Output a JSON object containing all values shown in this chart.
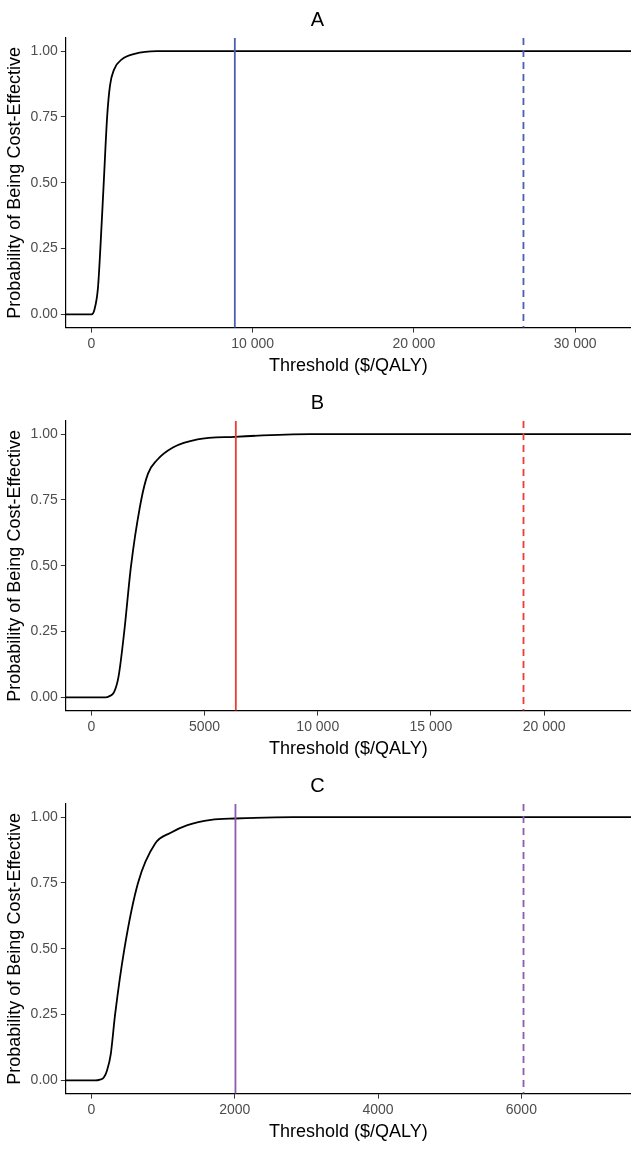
{
  "chart_data": [
    {
      "type": "line",
      "title": "A",
      "xlabel": "Threshold ($/QALY)",
      "ylabel": "Probability of Being Cost-Effective",
      "xlim": [
        -1590,
        33460
      ],
      "ylim": [
        -0.05,
        1.05
      ],
      "xticks": [
        0,
        {
          "value": 10000,
          "label": "10 000"
        },
        {
          "value": 20000,
          "label": "20 000"
        },
        {
          "value": 30000,
          "label": "30 000"
        }
      ],
      "yticks": [
        {
          "value": 0,
          "label": "0.00"
        },
        {
          "value": 0.25,
          "label": "0.25"
        },
        {
          "value": 0.5,
          "label": "0.50"
        },
        {
          "value": 0.75,
          "label": "0.75"
        },
        {
          "value": 1,
          "label": "1.00"
        }
      ],
      "grid": false,
      "legend": false,
      "marker": "none",
      "line_style": "solid",
      "series": [
        {
          "color": "#000000",
          "x": [
            -1590,
            0,
            190,
            400,
            550,
            760,
            970,
            1150,
            1400,
            1900,
            2670,
            4060,
            33460
          ],
          "values": [
            0,
            0,
            0.02,
            0.1,
            0.25,
            0.5,
            0.75,
            0.87,
            0.93,
            0.97,
            0.99,
            1,
            1
          ]
        }
      ],
      "ref_lines": [
        {
          "axis": "x",
          "value": 8890,
          "color": "#4a5fb0",
          "line_style": "solid"
        },
        {
          "axis": "x",
          "value": 26790,
          "color": "#4a5fb0",
          "line_style": "dashed"
        }
      ]
    },
    {
      "type": "line",
      "title": "B",
      "xlabel": "Threshold ($/QALY)",
      "ylabel": "Probability of Being Cost-Effective",
      "xlim": [
        -1130,
        23840
      ],
      "ylim": [
        -0.05,
        1.05
      ],
      "xticks": [
        0,
        5000,
        {
          "value": 10000,
          "label": "10 000"
        },
        {
          "value": 15000,
          "label": "15 000"
        },
        {
          "value": 20000,
          "label": "20 000"
        }
      ],
      "yticks": [
        {
          "value": 0,
          "label": "0.00"
        },
        {
          "value": 0.25,
          "label": "0.25"
        },
        {
          "value": 0.5,
          "label": "0.50"
        },
        {
          "value": 0.75,
          "label": "0.75"
        },
        {
          "value": 1,
          "label": "1.00"
        }
      ],
      "grid": false,
      "legend": false,
      "marker": "none",
      "line_style": "solid",
      "series": [
        {
          "color": "#000000",
          "x": [
            -1130,
            620,
            800,
            1000,
            1200,
            1450,
            1750,
            2200,
            2500,
            2880,
            3620,
            4690,
            6330,
            9660,
            23840
          ],
          "values": [
            0,
            0,
            0.005,
            0.02,
            0.08,
            0.25,
            0.5,
            0.75,
            0.85,
            0.9,
            0.95,
            0.98,
            0.99,
            1,
            1
          ]
        }
      ],
      "ref_lines": [
        {
          "axis": "x",
          "value": 6380,
          "color": "#ee3b33",
          "line_style": "solid"
        },
        {
          "axis": "x",
          "value": 19090,
          "color": "#ee3b33",
          "line_style": "dashed"
        }
      ]
    },
    {
      "type": "line",
      "title": "C",
      "xlabel": "Threshold ($/QALY)",
      "ylabel": "Probability of Being Cost-Effective",
      "xlim": [
        -357,
        7530
      ],
      "ylim": [
        -0.05,
        1.05
      ],
      "xticks": [
        0,
        2000,
        4000,
        6000
      ],
      "yticks": [
        {
          "value": 0,
          "label": "0.00"
        },
        {
          "value": 0.25,
          "label": "0.25"
        },
        {
          "value": 0.5,
          "label": "0.50"
        },
        {
          "value": 0.75,
          "label": "0.75"
        },
        {
          "value": 1,
          "label": "1.00"
        }
      ],
      "grid": false,
      "legend": false,
      "marker": "none",
      "line_style": "solid",
      "series": [
        {
          "color": "#000000",
          "x": [
            -357,
            50,
            120,
            170,
            220,
            270,
            330,
            460,
            650,
            890,
            1100,
            1340,
            1670,
            2010,
            2810,
            7530
          ],
          "values": [
            0,
            0,
            0.003,
            0.01,
            0.04,
            0.1,
            0.25,
            0.5,
            0.75,
            0.9,
            0.94,
            0.97,
            0.99,
            0.995,
            1,
            1
          ]
        }
      ],
      "ref_lines": [
        {
          "axis": "x",
          "value": 2010,
          "color": "#8a5cb0",
          "line_style": "solid"
        },
        {
          "axis": "x",
          "value": 6030,
          "color": "#8a5cb0",
          "line_style": "dashed"
        }
      ]
    }
  ]
}
